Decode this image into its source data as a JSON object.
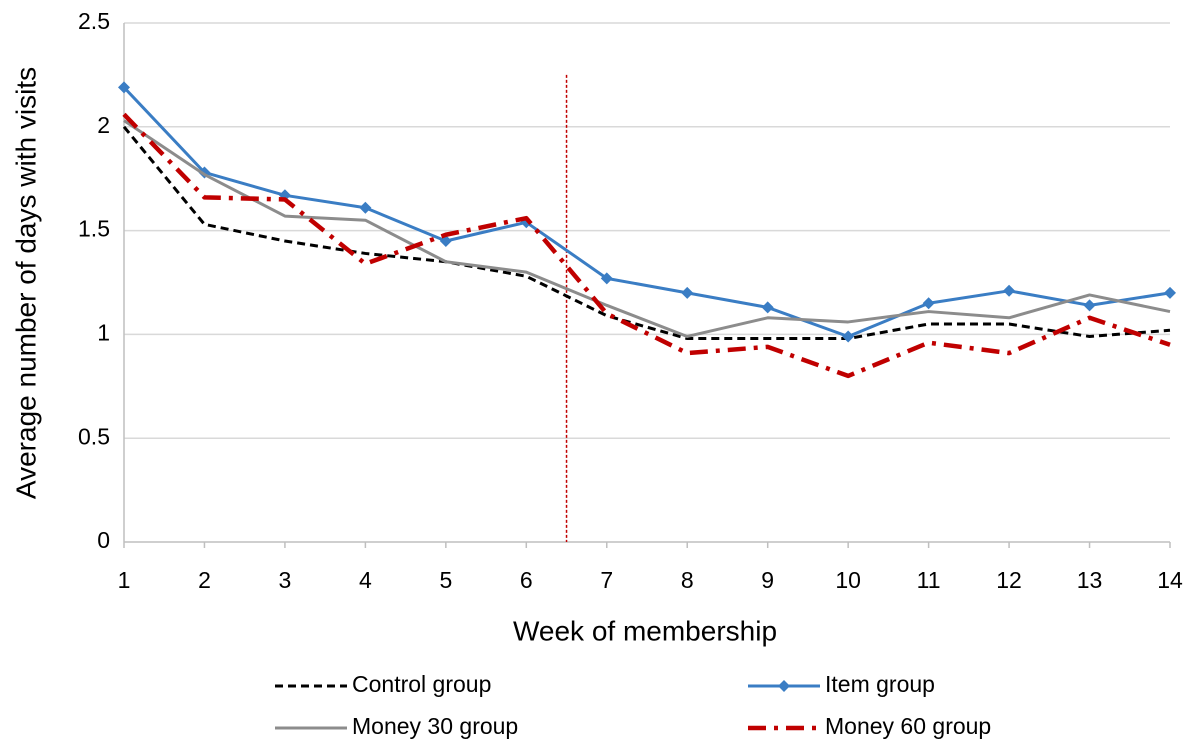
{
  "chart_data": {
    "type": "line",
    "x_label": "Week of membership",
    "y_label": "Average number of days with visits",
    "x": [
      1,
      2,
      3,
      4,
      5,
      6,
      7,
      8,
      9,
      10,
      11,
      12,
      13,
      14
    ],
    "xlim": [
      1,
      14
    ],
    "xticks": [
      1,
      2,
      3,
      4,
      5,
      6,
      7,
      8,
      9,
      10,
      11,
      12,
      13,
      14
    ],
    "ylim": [
      0,
      2.5
    ],
    "yticks": [
      0,
      0.5,
      1,
      1.5,
      2,
      2.5
    ],
    "grid": true,
    "vline_x": 6.5,
    "vline_color": "#c00000",
    "series": [
      {
        "name": "Control group",
        "color": "#000000",
        "style": "dashed",
        "values": [
          2.0,
          1.53,
          1.45,
          1.39,
          1.35,
          1.28,
          1.09,
          0.98,
          0.98,
          0.98,
          1.05,
          1.05,
          0.99,
          1.02
        ]
      },
      {
        "name": "Item group",
        "color": "#3a7dc4",
        "style": "solid",
        "marker": "diamond",
        "values": [
          2.19,
          1.78,
          1.67,
          1.61,
          1.45,
          1.54,
          1.27,
          1.2,
          1.13,
          0.99,
          1.15,
          1.21,
          1.14,
          1.2
        ]
      },
      {
        "name": "Money 30 group",
        "color": "#8c8c8c",
        "style": "solid",
        "values": [
          2.03,
          1.77,
          1.57,
          1.55,
          1.35,
          1.3,
          1.14,
          0.99,
          1.08,
          1.06,
          1.11,
          1.08,
          1.19,
          1.11
        ]
      },
      {
        "name": "Money 60 group",
        "color": "#c00000",
        "style": "dashdot",
        "values": [
          2.06,
          1.66,
          1.65,
          1.34,
          1.48,
          1.56,
          1.1,
          0.91,
          0.94,
          0.8,
          0.96,
          0.91,
          1.08,
          0.95
        ]
      }
    ]
  }
}
